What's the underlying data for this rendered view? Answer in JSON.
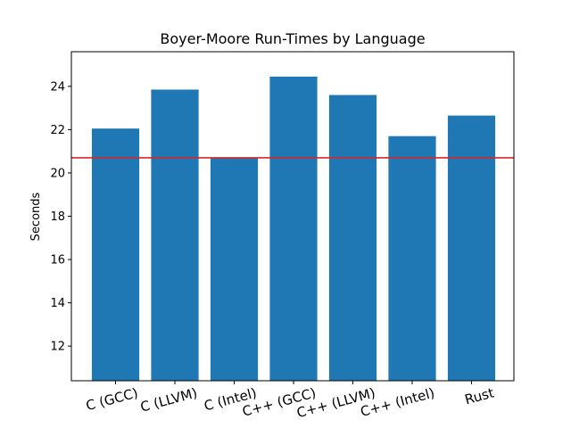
{
  "chart_data": {
    "type": "bar",
    "title": "Boyer-Moore Run-Times by Language",
    "xlabel": "",
    "ylabel": "Seconds",
    "categories": [
      "C (GCC)",
      "C (LLVM)",
      "C (Intel)",
      "C++ (GCC)",
      "C++ (LLVM)",
      "C++ (Intel)",
      "Rust"
    ],
    "values": [
      22.05,
      23.85,
      20.7,
      24.45,
      23.6,
      21.7,
      22.65
    ],
    "ylim": [
      10.4,
      25.6
    ],
    "yticks": [
      12,
      14,
      16,
      18,
      20,
      22,
      24
    ],
    "reference_line": {
      "y": 20.7,
      "color": "#d62728"
    },
    "bar_color": "#1f77b4",
    "xtick_rotation_deg": -15,
    "grid": false,
    "legend": "none"
  }
}
